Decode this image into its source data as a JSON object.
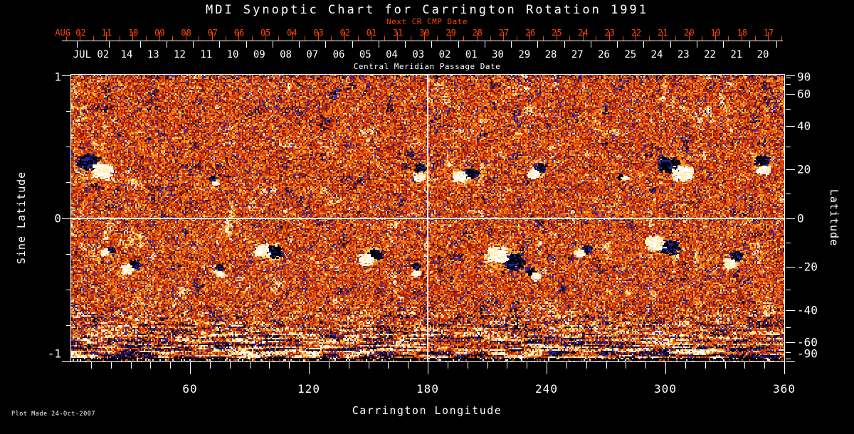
{
  "title": "MDI Synoptic Chart for Carrington Rotation 1991",
  "colors": {
    "background": "#000000",
    "axis_color": "#ffffff",
    "date_axis_accent": "#ff4500"
  },
  "chart_data": {
    "type": "heatmap",
    "title": "MDI Synoptic Chart for Carrington Rotation 1991",
    "xlabel": "Carrington Longitude",
    "ylabel_left": "Sine Latitude",
    "ylabel_right": "Latitude",
    "plot_made": "Plot Made 24-Oct-2007",
    "xlim": [
      0,
      360
    ],
    "ylim_sine": [
      -1,
      1
    ],
    "x_major_tick_labels": [
      60,
      120,
      180,
      240,
      300,
      360
    ],
    "x_minor_tick_step_deg": 10,
    "left_tick_labels": [
      "1",
      "0",
      "-1"
    ],
    "left_minor_tick_step": 0.25,
    "right_tick_labels": [
      "90",
      "60",
      "40",
      "20",
      "0",
      "-20",
      "-40",
      "-60",
      "-90"
    ],
    "right_tick_step_deg": 10,
    "top_axis": {
      "next_label": "Next CR CMP Date",
      "axis_label": "Central Meridian Passage Date",
      "red_dates": [
        "AUG 02",
        "11",
        "10",
        "09",
        "08",
        "07",
        "06",
        "05",
        "04",
        "03",
        "02",
        "01",
        "31",
        "30",
        "29",
        "28",
        "27",
        "26",
        "25",
        "24",
        "23",
        "22",
        "21",
        "20",
        "19",
        "18",
        "17"
      ],
      "white_dates": [
        "JUL 02",
        "14",
        "13",
        "12",
        "11",
        "10",
        "09",
        "08",
        "07",
        "06",
        "05",
        "04",
        "03",
        "02",
        "01",
        "30",
        "29",
        "28",
        "27",
        "26",
        "25",
        "24",
        "23",
        "22",
        "21",
        "20"
      ]
    },
    "crosshair": {
      "longitude": 180,
      "sine_latitude": 0
    },
    "colormap": [
      "#000000",
      "#10082e",
      "#2d2dbd",
      "#7d1302",
      "#a81c00",
      "#c32803",
      "#e04b08",
      "#ee7518",
      "#f49b2c",
      "#f3c44a",
      "#ffe9a8",
      "#ffffff"
    ],
    "active_regions": [
      {
        "lon": 12,
        "sine_lat": 0.36,
        "size": 13,
        "angle": 35
      },
      {
        "lon": 18,
        "sine_lat": -0.23,
        "size": 5,
        "angle": 160
      },
      {
        "lon": 30,
        "sine_lat": -0.34,
        "size": 7,
        "angle": 150
      },
      {
        "lon": 72,
        "sine_lat": 0.26,
        "size": 4,
        "angle": 60
      },
      {
        "lon": 75,
        "sine_lat": -0.37,
        "size": 5,
        "angle": 90
      },
      {
        "lon": 99,
        "sine_lat": -0.23,
        "size": 10,
        "angle": 185
      },
      {
        "lon": 151,
        "sine_lat": -0.27,
        "size": 9,
        "angle": 150
      },
      {
        "lon": 174,
        "sine_lat": -0.36,
        "size": 5,
        "angle": 90
      },
      {
        "lon": 176,
        "sine_lat": 0.32,
        "size": 7,
        "angle": 95
      },
      {
        "lon": 199,
        "sine_lat": 0.3,
        "size": 9,
        "angle": 165
      },
      {
        "lon": 219,
        "sine_lat": -0.28,
        "size": 13,
        "angle": 205
      },
      {
        "lon": 233,
        "sine_lat": -0.39,
        "size": 6,
        "angle": 40
      },
      {
        "lon": 235,
        "sine_lat": 0.33,
        "size": 7,
        "angle": 140
      },
      {
        "lon": 258,
        "sine_lat": -0.23,
        "size": 6,
        "angle": 150
      },
      {
        "lon": 278,
        "sine_lat": 0.28,
        "size": 4,
        "angle": 0
      },
      {
        "lon": 298,
        "sine_lat": -0.19,
        "size": 12,
        "angle": 195
      },
      {
        "lon": 305,
        "sine_lat": 0.34,
        "size": 13,
        "angle": 30
      },
      {
        "lon": 334,
        "sine_lat": -0.29,
        "size": 8,
        "angle": 130
      },
      {
        "lon": 349,
        "sine_lat": 0.37,
        "size": 8,
        "angle": 80
      }
    ]
  }
}
